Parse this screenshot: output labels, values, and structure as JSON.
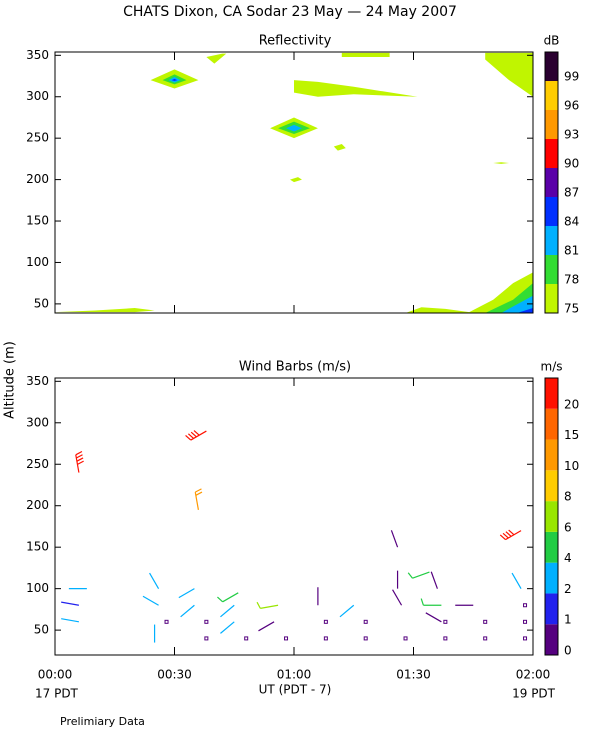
{
  "title": "CHATS Dixon, CA  Sodar  23 May — 24 May 2007",
  "y_label": "Altitude (m)",
  "x_label": "UT  (PDT - 7)",
  "x_start_note": "17 PDT",
  "x_end_note": "19 PDT",
  "footer": "Prelimiary Data",
  "chart_data": [
    {
      "type": "contour",
      "title": "Reflectivity",
      "colorbar_label": "dB",
      "levels": [
        75,
        78,
        81,
        84,
        87,
        90,
        93,
        96,
        99
      ],
      "colors": [
        "#c0f500",
        "#33dd33",
        "#00b0ff",
        "#0030ff",
        "#5a00a8",
        "#ff0000",
        "#ff9900",
        "#ffcc00",
        "#2a0030"
      ],
      "xlim": [
        0,
        120
      ],
      "ylim": [
        39,
        354
      ],
      "yticks": [
        50,
        100,
        150,
        200,
        250,
        300,
        350
      ],
      "regions": [
        {
          "level": 75,
          "x": [
            24,
            30,
            36,
            30
          ],
          "y": [
            320,
            333,
            320,
            310
          ]
        },
        {
          "level": 78,
          "x": [
            27,
            30,
            33,
            30
          ],
          "y": [
            320,
            327,
            320,
            315
          ]
        },
        {
          "level": 81,
          "x": [
            28.5,
            30,
            31.5,
            30
          ],
          "y": [
            320,
            324,
            320,
            317
          ]
        },
        {
          "level": 84,
          "x": [
            29.3,
            30,
            30.7,
            30
          ],
          "y": [
            320,
            321.5,
            320,
            319
          ]
        },
        {
          "level": 75,
          "x": [
            38,
            42,
            43,
            40
          ],
          "y": [
            348,
            352,
            352,
            340
          ]
        },
        {
          "level": 75,
          "x": [
            54,
            60,
            66,
            60
          ],
          "y": [
            262,
            275,
            262,
            250
          ]
        },
        {
          "level": 78,
          "x": [
            56,
            60,
            64,
            60
          ],
          "y": [
            262,
            270,
            262,
            255
          ]
        },
        {
          "level": 81,
          "x": [
            58,
            60,
            62,
            60
          ],
          "y": [
            262,
            266,
            262,
            258
          ]
        },
        {
          "level": 75,
          "x": [
            60,
            66,
            75,
            91,
            75,
            66,
            60
          ],
          "y": [
            320,
            318,
            312,
            300,
            303,
            300,
            305
          ]
        },
        {
          "level": 75,
          "x": [
            72,
            84,
            84,
            72
          ],
          "y": [
            348,
            348,
            353,
            353
          ]
        },
        {
          "level": 75,
          "x": [
            108,
            120,
            120,
            114,
            108
          ],
          "y": [
            353,
            353,
            300,
            320,
            345
          ]
        },
        {
          "level": 75,
          "x": [
            70,
            72,
            73,
            71
          ],
          "y": [
            240,
            243,
            238,
            235
          ]
        },
        {
          "level": 75,
          "x": [
            59,
            61,
            62,
            60
          ],
          "y": [
            200,
            203,
            200,
            197
          ]
        },
        {
          "level": 75,
          "x": [
            110,
            112,
            114,
            112
          ],
          "y": [
            220,
            221,
            220,
            219
          ]
        },
        {
          "level": 75,
          "x": [
            0,
            10,
            20,
            25,
            20,
            0
          ],
          "y": [
            40,
            42,
            45,
            42,
            40,
            40
          ]
        },
        {
          "level": 75,
          "x": [
            88,
            92,
            98,
            104,
            110,
            115,
            120,
            120
          ],
          "y": [
            39,
            46,
            44,
            40,
            55,
            75,
            88,
            39
          ]
        },
        {
          "level": 78,
          "x": [
            108,
            115,
            120,
            120
          ],
          "y": [
            39,
            55,
            75,
            39
          ]
        },
        {
          "level": 81,
          "x": [
            112,
            120,
            120
          ],
          "y": [
            39,
            60,
            39
          ]
        },
        {
          "level": 84,
          "x": [
            116,
            120,
            120
          ],
          "y": [
            39,
            45,
            39
          ]
        }
      ]
    },
    {
      "type": "barbs",
      "title": "Wind Barbs (m/s)",
      "colorbar_label": "m/s",
      "levels": [
        0,
        1,
        2,
        4,
        6,
        8,
        10,
        15,
        20
      ],
      "colors": [
        "#55007f",
        "#2222ee",
        "#00b0ff",
        "#22cc44",
        "#99e600",
        "#ffcc00",
        "#ff9900",
        "#ff6600",
        "#ff1100"
      ],
      "xlim": [
        0,
        120
      ],
      "ylim": [
        20,
        354
      ],
      "yticks": [
        50,
        100,
        150,
        200,
        250,
        300,
        350
      ],
      "xticks": [
        {
          "value": 0,
          "label": "00:00"
        },
        {
          "value": 30,
          "label": "00:30"
        },
        {
          "value": 60,
          "label": "01:00"
        },
        {
          "value": 90,
          "label": "01:30"
        },
        {
          "value": 120,
          "label": "02:00"
        }
      ],
      "x": [
        6,
        8,
        6,
        6,
        26,
        26,
        25,
        38,
        36,
        35,
        35,
        46,
        45,
        45,
        56,
        55,
        66,
        75,
        86,
        86,
        87,
        94,
        96,
        97,
        97,
        105,
        117,
        117,
        118,
        118,
        118,
        108,
        98,
        88,
        78,
        68,
        58,
        48,
        38,
        38,
        28,
        68,
        78,
        108,
        98
      ],
      "y": [
        240,
        100,
        80,
        60,
        100,
        80,
        35,
        290,
        195,
        100,
        80,
        95,
        80,
        60,
        80,
        60,
        80,
        80,
        150,
        100,
        80,
        120,
        100,
        80,
        60,
        80,
        170,
        100,
        80,
        60,
        40,
        40,
        40,
        40,
        40,
        40,
        40,
        40,
        40,
        60,
        60,
        60,
        60,
        60,
        60
      ],
      "speed": [
        21,
        3,
        1.5,
        3,
        3,
        3,
        3,
        21,
        13,
        3,
        3,
        5,
        3,
        3,
        6,
        0.8,
        0.8,
        3,
        0.8,
        0.8,
        0.8,
        5,
        0.8,
        5,
        0.8,
        0.8,
        21,
        3,
        0.3,
        0.3,
        0.3,
        0.3,
        0.3,
        0.3,
        0.3,
        0.3,
        0.3,
        0.3,
        0.3,
        0.3,
        0.3,
        0.3,
        0.3,
        0.3,
        0.3
      ],
      "direction": [
        350,
        270,
        280,
        280,
        330,
        300,
        0,
        240,
        350,
        240,
        230,
        240,
        230,
        230,
        260,
        240,
        0,
        230,
        340,
        0,
        330,
        250,
        340,
        270,
        300,
        270,
        240,
        330,
        null,
        null,
        null,
        null,
        null,
        null,
        null,
        null,
        null,
        null,
        null,
        null,
        null,
        null,
        null,
        null,
        null
      ]
    }
  ]
}
